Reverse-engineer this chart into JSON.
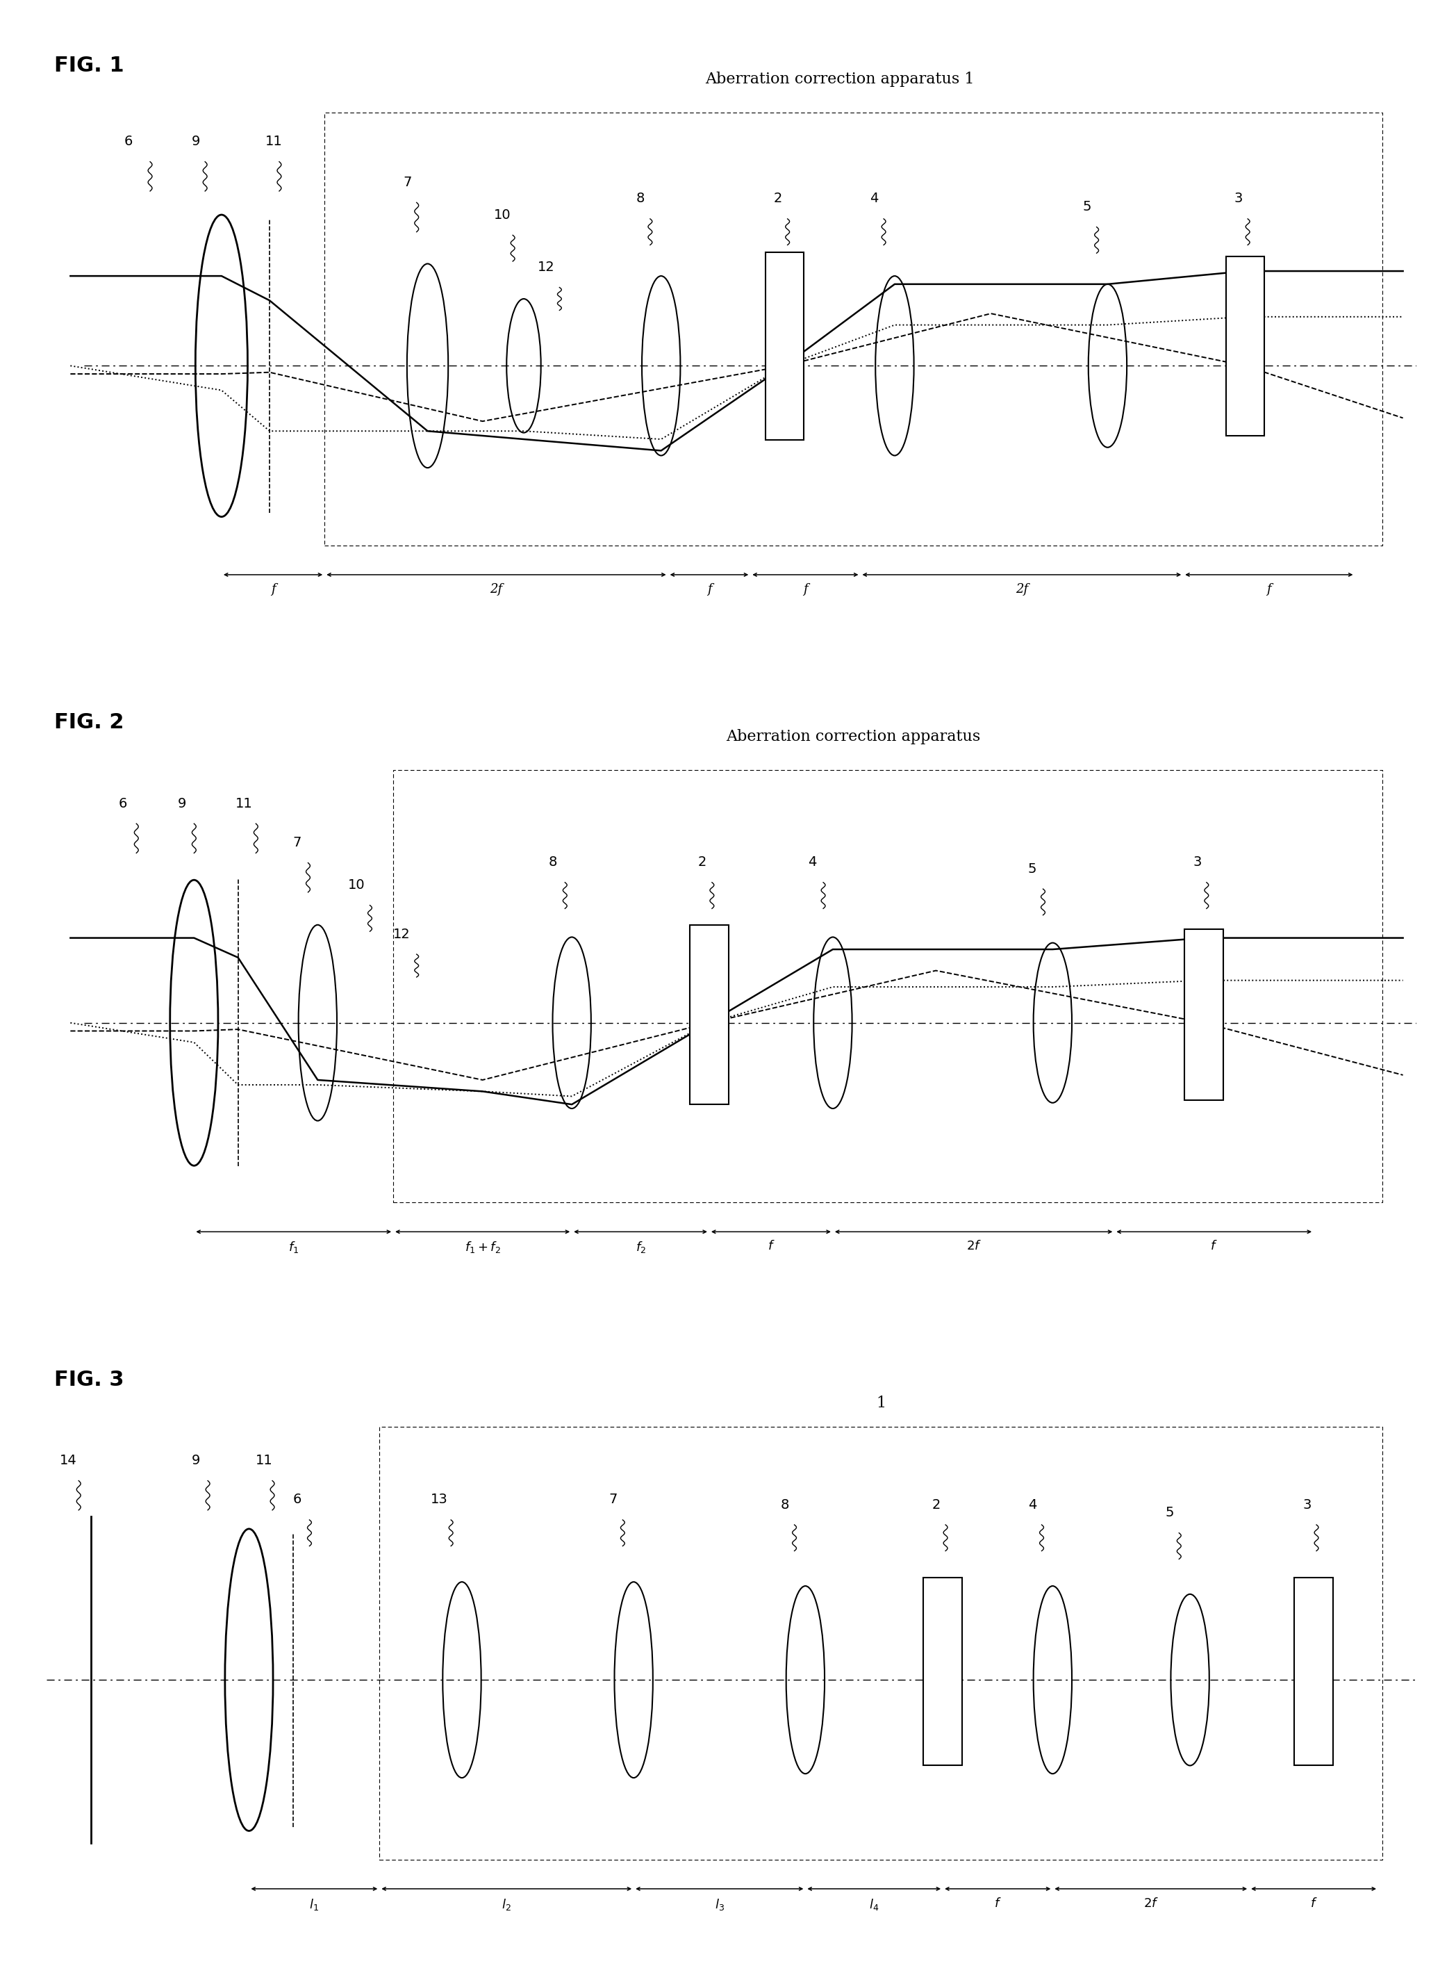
{
  "fig_labels": [
    "FIG. 1",
    "FIG. 2",
    "FIG. 3"
  ],
  "fig1_title": "Aberration correction apparatus 1",
  "fig2_title": "Aberration correction apparatus",
  "fig3_box_label": "1",
  "background_color": "#ffffff",
  "line_color": "#000000",
  "font_size_number": 14,
  "font_size_figlabel": 22,
  "font_size_title": 16
}
